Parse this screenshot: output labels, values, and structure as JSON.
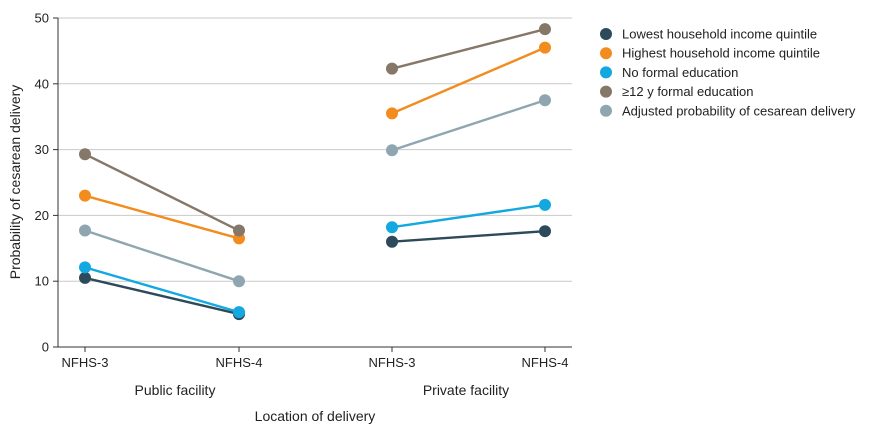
{
  "chart_data": {
    "type": "line",
    "xlabel": "Location of delivery",
    "ylabel": "Probability of cesarean delivery",
    "ylim": [
      0,
      50
    ],
    "yticks": [
      0,
      10,
      20,
      30,
      40,
      50
    ],
    "grid": true,
    "legend_position": "top-right",
    "groups": [
      {
        "label": "Public facility",
        "categories": [
          "NFHS-3",
          "NFHS-4"
        ]
      },
      {
        "label": "Private facility",
        "categories": [
          "NFHS-3",
          "NFHS-4"
        ]
      }
    ],
    "series": [
      {
        "name": "Lowest household income quintile",
        "color": "#2d4a5a",
        "public": [
          10.5,
          5.0
        ],
        "private": [
          16.0,
          17.6
        ]
      },
      {
        "name": "Highest household income quintile",
        "color": "#f28c1e",
        "public": [
          23.0,
          16.5
        ],
        "private": [
          35.5,
          45.5
        ]
      },
      {
        "name": "No formal education",
        "color": "#13a8e0",
        "public": [
          12.1,
          5.3
        ],
        "private": [
          18.2,
          21.6
        ]
      },
      {
        "name": "≥12 y formal education",
        "color": "#857869",
        "public": [
          29.3,
          17.7
        ],
        "private": [
          42.3,
          48.3
        ]
      },
      {
        "name": "Adjusted probability of cesarean delivery",
        "color": "#8fa6b1",
        "public": [
          17.7,
          10.0
        ],
        "private": [
          29.9,
          37.5
        ]
      }
    ]
  }
}
